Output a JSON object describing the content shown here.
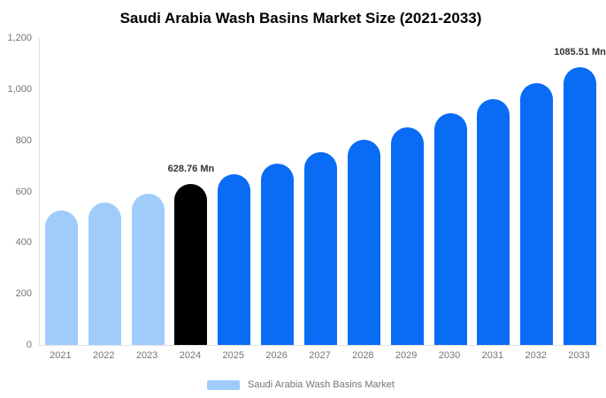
{
  "chart_data": {
    "type": "bar",
    "title": "Saudi Arabia Wash Basins Market Size (2021-2033)",
    "xlabel": "",
    "ylabel": "",
    "categories": [
      "2021",
      "2022",
      "2023",
      "2024",
      "2025",
      "2026",
      "2027",
      "2028",
      "2029",
      "2030",
      "2031",
      "2032",
      "2033"
    ],
    "values": [
      524,
      557,
      592,
      628.76,
      668,
      710,
      754,
      802,
      852,
      905,
      962,
      1022,
      1085.51
    ],
    "data_labels": {
      "2024": "628.76 Mn",
      "2033": "1085.51 Mn"
    },
    "ylim": [
      0,
      1200
    ],
    "ytick_values": [
      0,
      200,
      400,
      600,
      800,
      1000,
      1200
    ],
    "ytick_labels": [
      "0",
      "200",
      "400",
      "600",
      "800",
      "1,000",
      "1,200"
    ],
    "grid": false,
    "legend_position": "bottom",
    "legend_label": "Saudi Arabia Wash Basins Market",
    "colors": {
      "historical": "#A0CCFC",
      "base_year": "#000000",
      "forecast": "#0A6CF5",
      "axis_line": "#E0E0E0",
      "tick_text": "#757575",
      "data_label_text": "#333333",
      "title_text": "#000000"
    },
    "bar_color_keys": [
      "historical",
      "historical",
      "historical",
      "base_year",
      "forecast",
      "forecast",
      "forecast",
      "forecast",
      "forecast",
      "forecast",
      "forecast",
      "forecast",
      "forecast"
    ]
  }
}
